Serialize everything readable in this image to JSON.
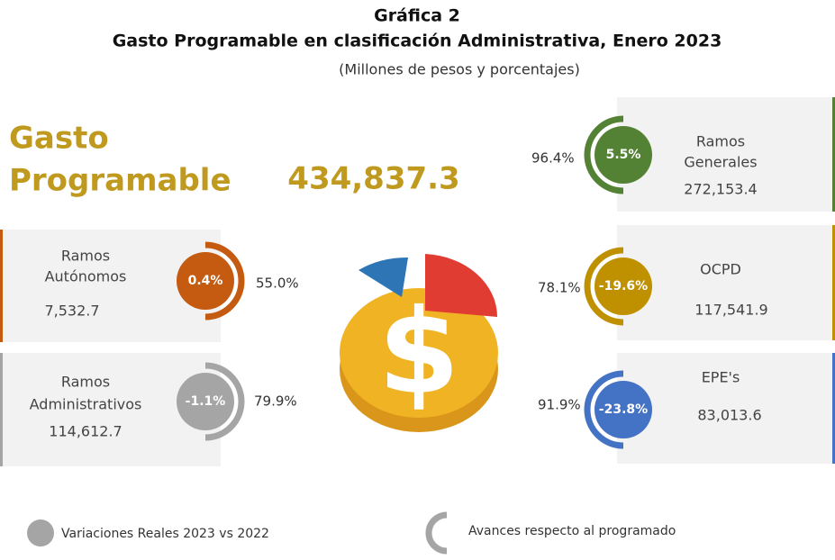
{
  "header": {
    "label": "Gráfica 2",
    "title": "Gasto Programable en clasificación Administrativa, Enero 2023",
    "subtitle": "(Millones de pesos y porcentajes)"
  },
  "total": {
    "name": [
      "Gasto",
      "Programable"
    ],
    "amount": "434,837.3"
  },
  "items": [
    {
      "name": [
        "Ramos",
        "Autónomos"
      ],
      "amount": "7,532.7",
      "variation": "0.4%",
      "progress": "55.0%"
    },
    {
      "name": [
        "Ramos",
        "Administrativos"
      ],
      "amount": "114,612.7",
      "variation": "-1.1%",
      "progress": "79.9%"
    },
    {
      "name": [
        "Ramos",
        "Generales"
      ],
      "amount": "272,153.4",
      "variation": "5.5%",
      "progress": "96.4%"
    },
    {
      "name": [
        "OCPD"
      ],
      "amount": "117,541.9",
      "variation": "-19.6%",
      "progress": "78.1%"
    },
    {
      "name": [
        "EPE's"
      ],
      "amount": "83,013.6",
      "variation": "-23.8%",
      "progress": "91.9%"
    }
  ],
  "legend": [
    "Variaciones Reales 2023 vs 2022",
    "Avances respecto al programado"
  ]
}
